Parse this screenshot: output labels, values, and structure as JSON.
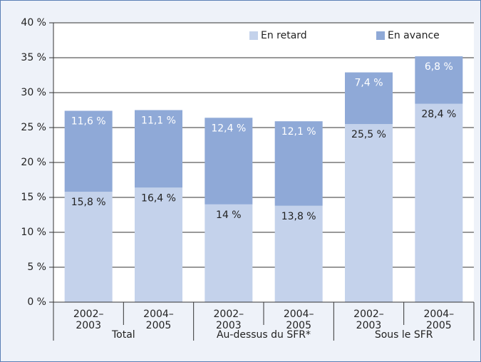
{
  "chart_data": {
    "type": "stacked_bar",
    "categories": [
      "2002–2003",
      "2004–2005",
      "2002–2003",
      "2004–2005",
      "2002–2003",
      "2004–2005"
    ],
    "groups": [
      "Total",
      "Au-dessus du SFR*",
      "Sous le SFR"
    ],
    "series": [
      {
        "name": "En retard",
        "color": "#c4d2eb",
        "values": [
          15.8,
          16.4,
          14,
          13.8,
          25.5,
          28.4
        ],
        "value_labels": [
          "15,8 %",
          "16,4 %",
          "14 %",
          "13,8 %",
          "25,5 %",
          "28,4 %"
        ]
      },
      {
        "name": "En avance",
        "color": "#8fa9d7",
        "values": [
          11.6,
          11.1,
          12.4,
          12.1,
          7.4,
          6.8
        ],
        "value_labels": [
          "11,6 %",
          "11,1 %",
          "12,4 %",
          "12,1 %",
          "7,4 %",
          "6,8 %"
        ]
      }
    ],
    "ylim": [
      0,
      40
    ],
    "yticks": [
      {
        "value": 0,
        "label": "0 %"
      },
      {
        "value": 5,
        "label": "5 %"
      },
      {
        "value": 10,
        "label": "10 %"
      },
      {
        "value": 15,
        "label": "15 %"
      },
      {
        "value": 20,
        "label": "20 %"
      },
      {
        "value": 25,
        "label": "25 %"
      },
      {
        "value": 30,
        "label": "30 %"
      },
      {
        "value": 35,
        "label": "35 %"
      },
      {
        "value": 40,
        "label": "40 %"
      }
    ],
    "grid": true,
    "legend": "top-right"
  }
}
